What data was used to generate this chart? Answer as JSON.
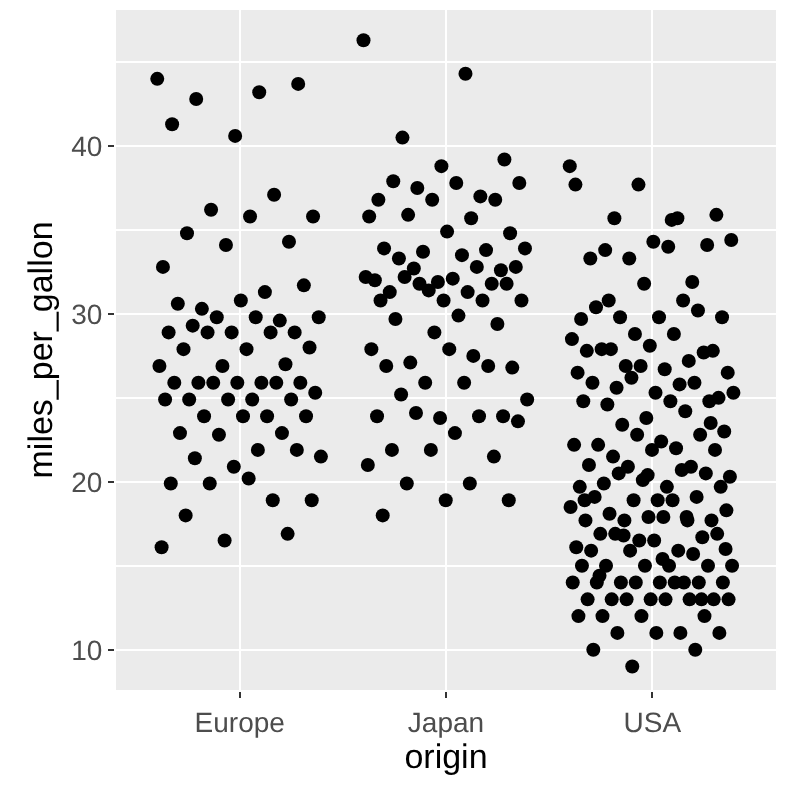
{
  "chart_data": {
    "type": "scatter",
    "xlabel": "origin",
    "ylabel": "miles_per_gallon",
    "categories": [
      "Europe",
      "Japan",
      "USA"
    ],
    "ylim": [
      7.6,
      48.1
    ],
    "yticks": [
      10,
      20,
      30,
      40
    ],
    "grid": true,
    "marker": "circle",
    "series": [
      {
        "color": "#000000",
        "x": [
          "Europe",
          "Europe",
          "Europe",
          "Europe",
          "Europe",
          "Europe",
          "Europe",
          "Europe",
          "Europe",
          "Europe",
          "Europe",
          "Europe",
          "Europe",
          "Europe",
          "Europe",
          "Europe",
          "Europe",
          "Europe",
          "Europe",
          "Europe",
          "Europe",
          "Europe",
          "Europe",
          "Europe",
          "Europe",
          "Europe",
          "Europe",
          "Europe",
          "Europe",
          "Europe",
          "Europe",
          "Europe",
          "Europe",
          "Europe",
          "Europe",
          "Europe",
          "Europe",
          "Europe",
          "Europe",
          "Europe",
          "Europe",
          "Europe",
          "Europe",
          "Europe",
          "Europe",
          "Europe",
          "Europe",
          "Europe",
          "Europe",
          "Europe",
          "Europe",
          "Europe",
          "Europe",
          "Europe",
          "Europe",
          "Europe",
          "Europe",
          "Europe",
          "Europe",
          "Europe",
          "Europe",
          "Europe",
          "Europe",
          "Europe",
          "Europe",
          "Europe",
          "Europe",
          "Europe",
          "Europe",
          "Japan",
          "Japan",
          "Japan",
          "Japan",
          "Japan",
          "Japan",
          "Japan",
          "Japan",
          "Japan",
          "Japan",
          "Japan",
          "Japan",
          "Japan",
          "Japan",
          "Japan",
          "Japan",
          "Japan",
          "Japan",
          "Japan",
          "Japan",
          "Japan",
          "Japan",
          "Japan",
          "Japan",
          "Japan",
          "Japan",
          "Japan",
          "Japan",
          "Japan",
          "Japan",
          "Japan",
          "Japan",
          "Japan",
          "Japan",
          "Japan",
          "Japan",
          "Japan",
          "Japan",
          "Japan",
          "Japan",
          "Japan",
          "Japan",
          "Japan",
          "Japan",
          "Japan",
          "Japan",
          "Japan",
          "Japan",
          "Japan",
          "Japan",
          "Japan",
          "Japan",
          "Japan",
          "Japan",
          "Japan",
          "Japan",
          "Japan",
          "Japan",
          "Japan",
          "Japan",
          "Japan",
          "Japan",
          "Japan",
          "Japan",
          "Japan",
          "Japan",
          "Japan",
          "Japan",
          "Japan",
          "Japan",
          "Japan",
          "Japan",
          "Japan",
          "Japan",
          "USA",
          "USA",
          "USA",
          "USA",
          "USA",
          "USA",
          "USA",
          "USA",
          "USA",
          "USA",
          "USA",
          "USA",
          "USA",
          "USA",
          "USA",
          "USA",
          "USA",
          "USA",
          "USA",
          "USA",
          "USA",
          "USA",
          "USA",
          "USA",
          "USA",
          "USA",
          "USA",
          "USA",
          "USA",
          "USA",
          "USA",
          "USA",
          "USA",
          "USA",
          "USA",
          "USA",
          "USA",
          "USA",
          "USA",
          "USA",
          "USA",
          "USA",
          "USA",
          "USA",
          "USA",
          "USA",
          "USA",
          "USA",
          "USA",
          "USA",
          "USA",
          "USA",
          "USA",
          "USA",
          "USA",
          "USA",
          "USA",
          "USA",
          "USA",
          "USA",
          "USA",
          "USA",
          "USA",
          "USA",
          "USA",
          "USA",
          "USA",
          "USA",
          "USA",
          "USA",
          "USA",
          "USA",
          "USA",
          "USA",
          "USA",
          "USA",
          "USA",
          "USA",
          "USA",
          "USA",
          "USA",
          "USA",
          "USA",
          "USA",
          "USA",
          "USA",
          "USA",
          "USA",
          "USA",
          "USA",
          "USA",
          "USA",
          "USA",
          "USA",
          "USA",
          "USA",
          "USA",
          "USA",
          "USA",
          "USA",
          "USA",
          "USA",
          "USA",
          "USA",
          "USA",
          "USA",
          "USA",
          "USA",
          "USA",
          "USA",
          "USA",
          "USA",
          "USA",
          "USA",
          "USA",
          "USA",
          "USA",
          "USA",
          "USA",
          "USA",
          "USA",
          "USA",
          "USA",
          "USA",
          "USA",
          "USA",
          "USA",
          "USA",
          "USA",
          "USA",
          "USA",
          "USA",
          "USA",
          "USA",
          "USA",
          "USA",
          "USA",
          "USA",
          "USA",
          "USA",
          "USA",
          "USA",
          "USA",
          "USA"
        ],
        "values": [
          44.0,
          43.2,
          42.8,
          43.7,
          40.6,
          41.3,
          37.1,
          36.2,
          35.8,
          35.8,
          34.8,
          34.3,
          34.1,
          32.8,
          31.3,
          30.3,
          31.7,
          30.8,
          30.6,
          29.6,
          29.8,
          29.8,
          29.8,
          29.3,
          28.9,
          28.9,
          28.9,
          28.9,
          28.9,
          28.0,
          27.9,
          27.9,
          27.0,
          26.9,
          26.9,
          25.9,
          25.9,
          25.9,
          25.9,
          25.9,
          25.9,
          25.9,
          25.3,
          24.9,
          24.9,
          24.9,
          24.9,
          24.9,
          23.9,
          23.9,
          23.9,
          23.9,
          22.9,
          22.9,
          22.8,
          21.5,
          21.9,
          21.4,
          21.9,
          20.9,
          19.9,
          18.9,
          19.9,
          18.9,
          20.2,
          18.0,
          16.9,
          16.5,
          16.1,
          46.3,
          44.3,
          40.5,
          39.2,
          38.8,
          36.8,
          37.0,
          37.5,
          37.8,
          37.8,
          37.9,
          36.8,
          36.8,
          35.8,
          35.7,
          35.9,
          34.8,
          34.9,
          33.9,
          33.8,
          33.7,
          33.9,
          33.5,
          33.3,
          32.6,
          31.9,
          32.0,
          32.8,
          32.7,
          32.8,
          32.1,
          31.3,
          31.8,
          31.4,
          32.2,
          31.3,
          32.2,
          31.8,
          30.8,
          30.8,
          30.8,
          31.8,
          30.8,
          29.9,
          29.7,
          29.4,
          28.9,
          27.9,
          27.5,
          27.1,
          26.8,
          27.9,
          26.9,
          26.9,
          25.9,
          24.9,
          25.9,
          25.2,
          23.9,
          23.8,
          23.9,
          23.9,
          24.1,
          23.6,
          22.9,
          21.9,
          21.5,
          21.9,
          21.0,
          19.9,
          19.9,
          18.9,
          18.9,
          18.0,
          38.8,
          35.6,
          30.8,
          23.5,
          20.4,
          18.9,
          17.9,
          16.8,
          16.0,
          15.4,
          14.4,
          13.0,
          37.7,
          37.7,
          35.7,
          35.7,
          35.9,
          34.3,
          33.3,
          31.9,
          33.3,
          34.4,
          34.0,
          33.8,
          34.1,
          31.8,
          29.7,
          30.8,
          29.8,
          29.8,
          29.8,
          30.4,
          30.2,
          28.8,
          28.5,
          28.8,
          27.9,
          27.8,
          28.1,
          27.8,
          27.2,
          26.9,
          26.5,
          26.7,
          27.9,
          27.7,
          26.9,
          26.5,
          25.8,
          25.6,
          25.0,
          25.3,
          25.9,
          25.9,
          26.2,
          25.3,
          24.8,
          24.6,
          24.8,
          23.8,
          24.8,
          24.2,
          23.4,
          23.0,
          22.4,
          22.2,
          22.8,
          22.8,
          22.2,
          22.0,
          21.5,
          21.9,
          21.9,
          21.0,
          20.9,
          20.9,
          20.3,
          19.7,
          19.9,
          20.5,
          20.1,
          19.7,
          20.7,
          20.5,
          19.7,
          18.9,
          19.1,
          19.1,
          18.9,
          18.5,
          18.9,
          18.1,
          17.7,
          17.9,
          17.7,
          17.7,
          17.7,
          18.3,
          17.9,
          16.9,
          16.7,
          16.5,
          16.1,
          15.9,
          16.9,
          16.9,
          16.5,
          15.9,
          15.7,
          15.9,
          15.0,
          15.0,
          15.0,
          15.0,
          15.0,
          15.0,
          14.0,
          14.0,
          14.0,
          14.0,
          14.0,
          14.0,
          14.0,
          14.0,
          14.0,
          13.0,
          13.0,
          13.0,
          13.0,
          13.0,
          13.0,
          13.0,
          13.0,
          12.0,
          12.0,
          12.0,
          12.0,
          11.0,
          11.0,
          11.0,
          11.0,
          10.0,
          10.0,
          9.0
        ]
      }
    ]
  }
}
